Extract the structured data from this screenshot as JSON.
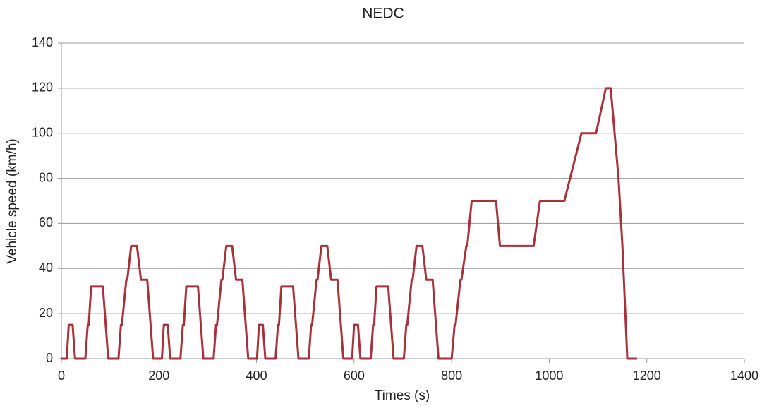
{
  "chart_data": {
    "type": "line",
    "title": "NEDC",
    "x_label": "Times (s)",
    "y_label": "Vehicle speed (km/h)",
    "x": [
      0,
      11,
      15,
      23,
      28,
      49,
      54,
      56,
      61,
      85,
      96,
      117,
      122,
      124,
      133,
      135,
      143,
      155,
      163,
      176,
      188,
      195,
      206,
      210,
      218,
      223,
      244,
      249,
      251,
      256,
      280,
      291,
      312,
      317,
      319,
      328,
      330,
      338,
      350,
      358,
      371,
      383,
      390,
      401,
      405,
      413,
      418,
      439,
      444,
      446,
      451,
      475,
      486,
      507,
      512,
      514,
      523,
      525,
      533,
      545,
      553,
      566,
      578,
      585,
      596,
      600,
      608,
      613,
      634,
      639,
      641,
      646,
      670,
      681,
      702,
      707,
      709,
      718,
      720,
      728,
      740,
      748,
      761,
      773,
      780,
      800,
      806,
      808,
      818,
      820,
      830,
      832,
      841,
      891,
      899,
      968,
      981,
      1031,
      1066,
      1096,
      1116,
      1126,
      1142,
      1150,
      1160,
      1180
    ],
    "series": [
      {
        "name": "NEDC",
        "color": "#a8323a",
        "values": [
          0,
          0,
          15,
          15,
          0,
          0,
          15,
          15,
          32,
          32,
          0,
          0,
          15,
          15,
          35,
          35,
          50,
          50,
          35,
          35,
          0,
          0,
          0,
          15,
          15,
          0,
          0,
          15,
          15,
          32,
          32,
          0,
          0,
          15,
          15,
          35,
          35,
          50,
          50,
          35,
          35,
          0,
          0,
          0,
          15,
          15,
          0,
          0,
          15,
          15,
          32,
          32,
          0,
          0,
          15,
          15,
          35,
          35,
          50,
          50,
          35,
          35,
          0,
          0,
          0,
          15,
          15,
          0,
          0,
          15,
          15,
          32,
          32,
          0,
          0,
          15,
          15,
          35,
          35,
          50,
          50,
          35,
          35,
          0,
          0,
          0,
          15,
          15,
          35,
          35,
          50,
          50,
          70,
          70,
          50,
          50,
          70,
          70,
          100,
          100,
          120,
          120,
          80,
          50,
          0,
          0
        ]
      }
    ],
    "xlim": [
      0,
      1400
    ],
    "xticks": [
      0,
      200,
      400,
      600,
      800,
      1000,
      1200,
      1400
    ],
    "ylim": [
      0,
      140
    ],
    "yticks": [
      0,
      20,
      40,
      60,
      80,
      100,
      120,
      140
    ],
    "grid": true
  }
}
